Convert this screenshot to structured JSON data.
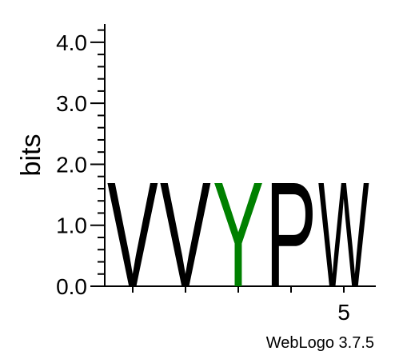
{
  "chart_data": {
    "type": "sequence-logo",
    "ylabel": "bits",
    "ylim": [
      0,
      4.3
    ],
    "yticks": [
      "0.0",
      "1.0",
      "2.0",
      "3.0",
      "4.0"
    ],
    "y_tick_values": [
      0,
      1,
      2,
      3,
      4
    ],
    "xlim": [
      0.5,
      5.5
    ],
    "x_tick_positions": [
      1,
      2,
      3,
      4,
      5
    ],
    "x_tick_labels": [
      "",
      "",
      "",
      "",
      "5"
    ],
    "positions": [
      {
        "position": 1,
        "letter": "V",
        "bits": 1.77,
        "color": "#000000"
      },
      {
        "position": 2,
        "letter": "V",
        "bits": 1.77,
        "color": "#000000"
      },
      {
        "position": 3,
        "letter": "Y",
        "bits": 1.77,
        "color": "#008000"
      },
      {
        "position": 4,
        "letter": "P",
        "bits": 1.77,
        "color": "#000000"
      },
      {
        "position": 5,
        "letter": "W",
        "bits": 1.77,
        "color": "#000000"
      }
    ],
    "credit": "WebLogo 3.7.5"
  }
}
